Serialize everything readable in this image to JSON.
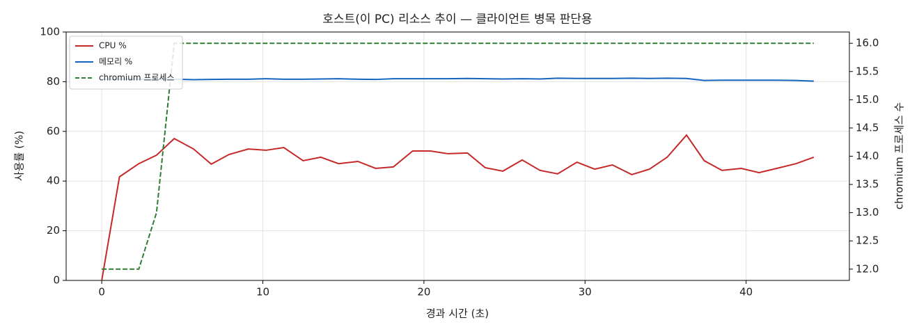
{
  "chart_data": {
    "type": "line",
    "title": "호스트(이 PC) 리소스 추이 — 클라이언트 병목 판단용",
    "xlabel": "경과 시간 (초)",
    "ylabel": "사용률 (%)",
    "y2label": "chromium 프로세스 수",
    "x": [
      0,
      1.1,
      2.3,
      3.4,
      4.5,
      5.7,
      6.8,
      7.9,
      9.1,
      10.2,
      11.3,
      12.5,
      13.6,
      14.7,
      15.9,
      17.0,
      18.1,
      19.3,
      20.4,
      21.5,
      22.7,
      23.8,
      24.9,
      26.1,
      27.2,
      28.3,
      29.5,
      30.6,
      31.7,
      32.9,
      34.0,
      35.1,
      36.3,
      37.4,
      38.5,
      39.7,
      40.8,
      41.9,
      43.1,
      44.2
    ],
    "series": [
      {
        "name": "CPU %",
        "color": "#c62828",
        "dash": false,
        "values": [
          0,
          41.7,
          47,
          50.4,
          57.1,
          52.9,
          46.8,
          50.7,
          52.9,
          52.4,
          53.5,
          48.2,
          49.6,
          47,
          47.9,
          45.1,
          45.7,
          52.1,
          52.1,
          51,
          51.3,
          45.4,
          44,
          48.5,
          44.3,
          42.9,
          47.6,
          44.8,
          46.5,
          42.6,
          44.8,
          49.6,
          58.5,
          48.2,
          44.3,
          45.1,
          43.4,
          45.1,
          47,
          49.6
        ]
      },
      {
        "name": "메모리 %",
        "color": "#1565c0",
        "dash": false,
        "values": [
          81,
          81,
          81,
          81,
          81,
          80.8,
          80.9,
          81,
          81,
          81.2,
          81,
          81,
          81.1,
          81.2,
          81,
          80.9,
          81.2,
          81.2,
          81.2,
          81.2,
          81.3,
          81.2,
          81.1,
          81.2,
          81.1,
          81.4,
          81.3,
          81.3,
          81.3,
          81.4,
          81.3,
          81.4,
          81.3,
          80.5,
          80.6,
          80.6,
          80.6,
          80.6,
          80.5,
          80.2
        ]
      },
      {
        "name": "chromium 프로세스",
        "color": "#2e7d32",
        "dash": true,
        "axis": "y2",
        "values": [
          12,
          12,
          12,
          13,
          16,
          16,
          16,
          16,
          16,
          16,
          16,
          16,
          16,
          16,
          16,
          16,
          16,
          16,
          16,
          16,
          16,
          16,
          16,
          16,
          16,
          16,
          16,
          16,
          16,
          16,
          16,
          16,
          16,
          16,
          16,
          16,
          16,
          16,
          16,
          16
        ]
      }
    ],
    "xlim": [
      -2.21,
      46.41
    ],
    "xticks": [
      0,
      10,
      20,
      30,
      40
    ],
    "ylim": [
      0,
      100
    ],
    "yticks": [
      0,
      20,
      40,
      60,
      80,
      100
    ],
    "y2lim": [
      11.8,
      16.2
    ],
    "y2ticks": [
      {
        "value": 12,
        "label": "12.0"
      },
      12.5,
      {
        "value": 13,
        "label": "13.0"
      },
      13.5,
      {
        "value": 14,
        "label": "14.0"
      },
      14.5,
      {
        "value": 15,
        "label": "15.0"
      },
      15.5,
      {
        "value": 16,
        "label": "16.0"
      }
    ],
    "grid": true,
    "legend": "upper left"
  }
}
